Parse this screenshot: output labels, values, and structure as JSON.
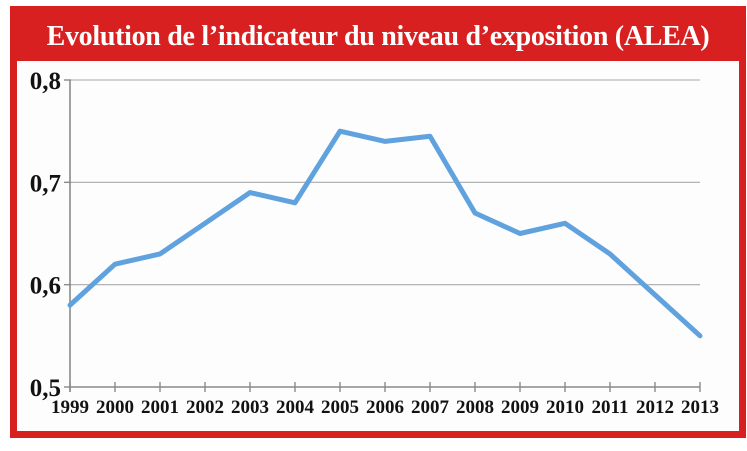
{
  "title_bar": {
    "text": "Evolution de l’indicateur du niveau d’exposition (ALEA)"
  },
  "colors": {
    "frame_red": "#d7201f",
    "title_white": "#ffffff",
    "line_blue": "#5fa2dd",
    "grid_gray": "#a9a9a9",
    "axis_gray": "#8a8a8a",
    "text_black": "#121212",
    "background": "#ffffff"
  },
  "chart_data": {
    "type": "line",
    "title": "Evolution de l’indicateur du niveau d’exposition (ALEA)",
    "xlabel": "",
    "ylabel": "",
    "categories": [
      "1999",
      "2000",
      "2001",
      "2002",
      "2003",
      "2004",
      "2005",
      "2006",
      "2007",
      "2008",
      "2009",
      "2010",
      "2011",
      "2012",
      "2013"
    ],
    "series": [
      {
        "name": "Indicateur du niveau d’exposition (ALEA)",
        "values": [
          0.58,
          0.62,
          0.63,
          0.66,
          0.69,
          0.68,
          0.75,
          0.74,
          0.745,
          0.67,
          0.65,
          0.66,
          0.63,
          0.59,
          0.55
        ]
      }
    ],
    "ylim": [
      0.5,
      0.8
    ],
    "y_ticks": [
      {
        "value": 0.8,
        "label": "0,8"
      },
      {
        "value": 0.7,
        "label": "0,7"
      },
      {
        "value": 0.6,
        "label": "0,6"
      },
      {
        "value": 0.5,
        "label": "0,5"
      }
    ],
    "grid": true,
    "legend_position": "none",
    "line_color": "#5fa2dd"
  }
}
